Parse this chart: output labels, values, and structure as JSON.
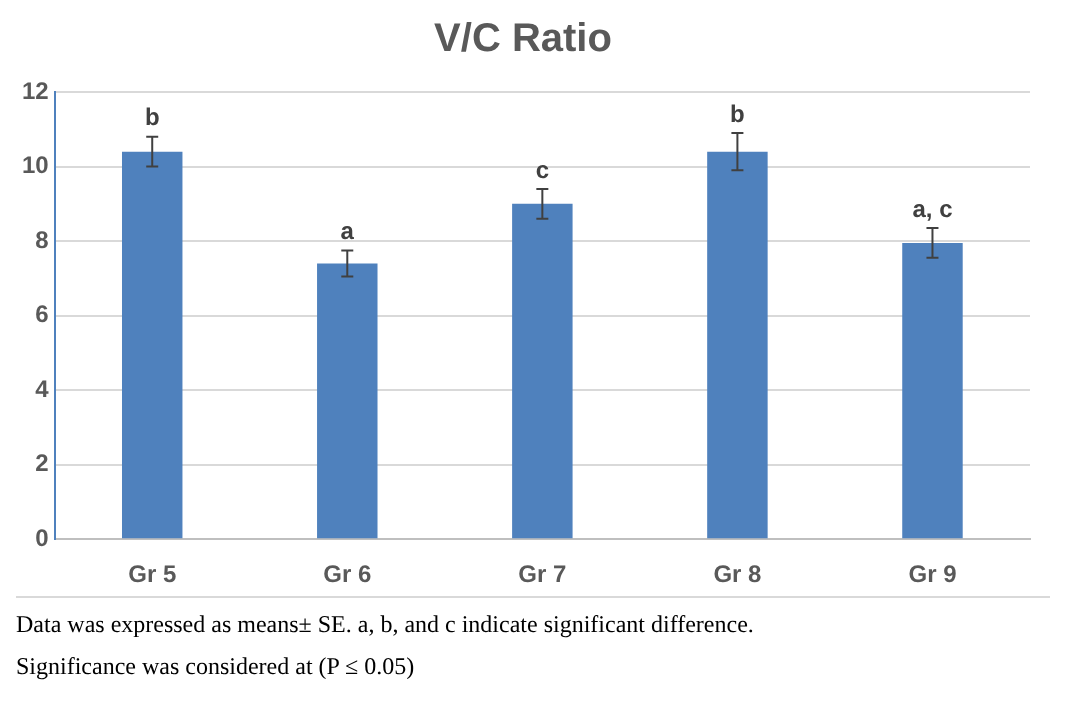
{
  "chart_data": {
    "type": "bar",
    "title": "V/C Ratio",
    "categories": [
      "Gr 5",
      "Gr 6",
      "Gr 7",
      "Gr 8",
      "Gr 9"
    ],
    "values": [
      10.4,
      7.4,
      9.0,
      10.4,
      7.95
    ],
    "errors": [
      0.4,
      0.35,
      0.4,
      0.5,
      0.4
    ],
    "color": "#4f81bd",
    "ylim": [
      0,
      12
    ],
    "yticks": [
      0,
      2,
      4,
      6,
      8,
      10,
      12
    ],
    "grid": "y",
    "legend": false,
    "annotations": [
      {
        "text": "b",
        "x": "Gr 5",
        "y": 10.8
      },
      {
        "text": "a",
        "x": "Gr 6",
        "y": 7.75
      },
      {
        "text": "c",
        "x": "Gr 7",
        "y": 9.4
      },
      {
        "text": "b",
        "x": "Gr 8",
        "y": 10.9
      },
      {
        "text": "a, c",
        "x": "Gr 9",
        "y": 8.35
      },
      "Data was expressed as means± SE. a, b, and c indicate significant difference.",
      "Significance was considered at (P ≤ 0.05)"
    ]
  }
}
